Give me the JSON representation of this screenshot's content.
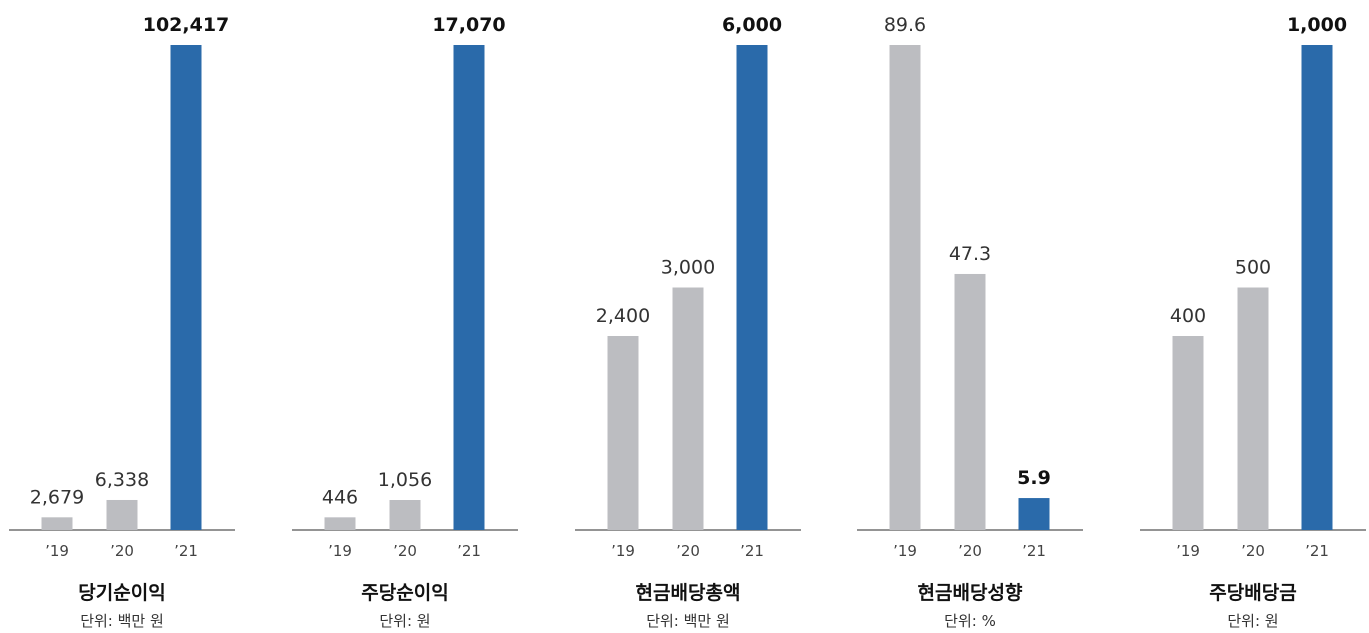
{
  "colors": {
    "past": "#bcbdc1",
    "current": "#2a6aaa",
    "axis": "#555555"
  },
  "chart_data": [
    {
      "type": "bar",
      "title": "당기순이익",
      "unit_label": "단위: 백만 원",
      "categories": [
        "’19",
        "’20",
        "’21"
      ],
      "values": [
        2679,
        6338,
        102417
      ],
      "value_labels": [
        "2,679",
        "6,338",
        "102,417"
      ],
      "highlight_index": 2
    },
    {
      "type": "bar",
      "title": "주당순이익",
      "unit_label": "단위: 원",
      "categories": [
        "’19",
        "’20",
        "’21"
      ],
      "values": [
        446,
        1056,
        17070
      ],
      "value_labels": [
        "446",
        "1,056",
        "17,070"
      ],
      "highlight_index": 2
    },
    {
      "type": "bar",
      "title": "현금배당총액",
      "unit_label": "단위: 백만 원",
      "categories": [
        "’19",
        "’20",
        "’21"
      ],
      "values": [
        2400,
        3000,
        6000
      ],
      "value_labels": [
        "2,400",
        "3,000",
        "6,000"
      ],
      "highlight_index": 2
    },
    {
      "type": "bar",
      "title": "현금배당성향",
      "unit_label": "단위: %",
      "categories": [
        "’19",
        "’20",
        "’21"
      ],
      "values": [
        89.6,
        47.3,
        5.9
      ],
      "value_labels": [
        "89.6",
        "47.3",
        "5.9"
      ],
      "highlight_index": 2
    },
    {
      "type": "bar",
      "title": "주당배당금",
      "unit_label": "단위: 원",
      "categories": [
        "’19",
        "’20",
        "’21"
      ],
      "values": [
        400,
        500,
        1000
      ],
      "value_labels": [
        "400",
        "500",
        "1,000"
      ],
      "highlight_index": 2
    }
  ]
}
